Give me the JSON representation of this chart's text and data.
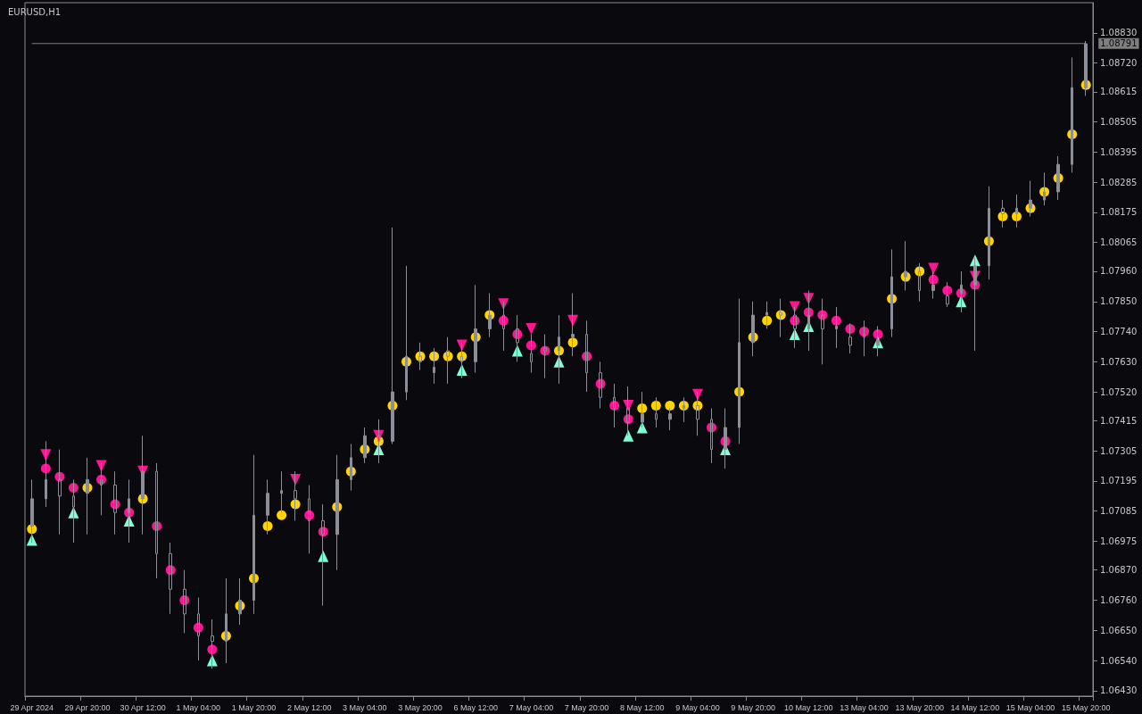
{
  "chart_data": {
    "type": "candlestick",
    "title": "EURUSD,H1",
    "categories": [
      "29 Apr 2024",
      null,
      null,
      null,
      "29 Apr 20:00",
      null,
      null,
      null,
      "30 Apr 12:00",
      null,
      null,
      null,
      "1 May 04:00",
      null,
      null,
      null,
      "1 May 20:00",
      null,
      null,
      null,
      "2 May 12:00",
      null,
      null,
      null,
      "3 May 04:00",
      null,
      null,
      null,
      "3 May 20:00",
      null,
      null,
      null,
      "6 May 12:00",
      null,
      null,
      null,
      "7 May 04:00",
      null,
      null,
      null,
      "7 May 20:00",
      null,
      null,
      null,
      "8 May 12:00",
      null,
      null,
      null,
      "9 May 04:00",
      null,
      null,
      null,
      "9 May 20:00",
      null,
      null,
      null,
      "10 May 12:00",
      null,
      null,
      null,
      "13 May 04:00",
      null,
      null,
      null,
      "13 May 20:00",
      null,
      null,
      null,
      "14 May 12:00",
      null,
      null,
      null,
      "15 May 04:00",
      null,
      null,
      null,
      "15 May 20:00"
    ],
    "ylim": [
      1.0641,
      1.0894
    ],
    "yticks": [
      {
        "value": 1.0643,
        "label": "1.06430"
      },
      {
        "value": 1.0654,
        "label": "1.06540"
      },
      {
        "value": 1.0665,
        "label": "1.06650"
      },
      {
        "value": 1.0676,
        "label": "1.06760"
      },
      {
        "value": 1.0687,
        "label": "1.06870"
      },
      {
        "value": 1.06975,
        "label": "1.06975"
      },
      {
        "value": 1.07085,
        "label": "1.07085"
      },
      {
        "value": 1.07195,
        "label": "1.07195"
      },
      {
        "value": 1.07305,
        "label": "1.07305"
      },
      {
        "value": 1.07415,
        "label": "1.07415"
      },
      {
        "value": 1.0752,
        "label": "1.07520"
      },
      {
        "value": 1.0763,
        "label": "1.07630"
      },
      {
        "value": 1.0774,
        "label": "1.07740"
      },
      {
        "value": 1.0785,
        "label": "1.07850"
      },
      {
        "value": 1.0796,
        "label": "1.07960"
      },
      {
        "value": 1.08065,
        "label": "1.08065"
      },
      {
        "value": 1.08175,
        "label": "1.08175"
      },
      {
        "value": 1.08285,
        "label": "1.08285"
      },
      {
        "value": 1.08395,
        "label": "1.08395"
      },
      {
        "value": 1.08505,
        "label": "1.08505"
      },
      {
        "value": 1.08615,
        "label": "1.08615"
      },
      {
        "value": 1.0872,
        "label": "1.08720"
      },
      {
        "value": 1.0883,
        "label": "1.08830"
      }
    ],
    "grid": false,
    "ref_lines": [
      {
        "axis": "y",
        "value": 1.08791,
        "label": "1.08791",
        "color": "#7f7f7f"
      }
    ],
    "series": [
      {
        "type": "scatter",
        "marker": "circle",
        "color": "#ffd400",
        "values": [
          1.0702,
          null,
          null,
          null,
          1.0717,
          null,
          null,
          null,
          1.0713,
          null,
          null,
          null,
          null,
          null,
          1.0663,
          1.0674,
          1.0684,
          1.0703,
          1.0707,
          1.0711,
          null,
          null,
          1.071,
          1.0723,
          1.0731,
          1.0734,
          1.0747,
          1.0763,
          1.0765,
          1.0765,
          1.0765,
          1.0765,
          1.0772,
          1.078,
          null,
          null,
          null,
          null,
          1.0767,
          1.077,
          null,
          null,
          null,
          null,
          1.0746,
          1.0747,
          1.0747,
          1.0747,
          1.0747,
          null,
          null,
          1.0752,
          1.0772,
          1.0778,
          1.078,
          null,
          null,
          null,
          null,
          null,
          null,
          null,
          1.0786,
          1.0794,
          1.0796,
          null,
          null,
          null,
          null,
          1.0807,
          1.0816,
          1.0816,
          1.0819,
          1.0825,
          1.083,
          1.0846,
          1.0864
        ]
      },
      {
        "type": "scatter",
        "marker": "circle",
        "color": "#ff1493",
        "values": [
          null,
          1.0724,
          1.0721,
          1.0717,
          null,
          1.072,
          1.0711,
          1.0708,
          null,
          1.0703,
          1.0687,
          1.0676,
          1.0666,
          1.0658,
          null,
          null,
          null,
          null,
          null,
          null,
          1.0707,
          1.0701,
          null,
          null,
          null,
          null,
          null,
          null,
          null,
          null,
          null,
          null,
          null,
          null,
          1.0778,
          1.0773,
          1.0769,
          1.0767,
          null,
          null,
          1.0765,
          1.0755,
          1.0747,
          1.0742,
          null,
          null,
          null,
          null,
          null,
          1.0739,
          1.0734,
          null,
          null,
          null,
          null,
          1.0778,
          1.0781,
          1.078,
          1.0778,
          1.0775,
          1.0774,
          1.0773,
          null,
          null,
          null,
          1.0793,
          1.0789,
          1.0788,
          1.0791,
          null,
          null,
          null,
          null,
          null,
          null,
          null,
          null
        ]
      },
      {
        "type": "scatter",
        "marker": "triangle",
        "color": "#7fffd4",
        "values": [
          1.0698,
          null,
          null,
          1.0708,
          null,
          null,
          null,
          1.0705,
          null,
          null,
          null,
          null,
          null,
          1.0654,
          null,
          null,
          null,
          null,
          null,
          null,
          null,
          1.0692,
          null,
          null,
          null,
          1.0731,
          null,
          null,
          null,
          null,
          null,
          1.076,
          null,
          null,
          null,
          1.0767,
          null,
          null,
          1.0763,
          null,
          null,
          null,
          null,
          1.0736,
          1.0739,
          null,
          null,
          null,
          null,
          null,
          1.0731,
          null,
          null,
          null,
          null,
          1.0773,
          1.0776,
          null,
          null,
          null,
          null,
          1.077,
          null,
          null,
          null,
          null,
          null,
          1.0785,
          1.08,
          null,
          null,
          null,
          null,
          null,
          null,
          null,
          null
        ]
      },
      {
        "type": "scatter",
        "marker": "triangle",
        "color": "#ff1493",
        "values": [
          null,
          1.0729,
          null,
          null,
          null,
          1.0725,
          null,
          null,
          1.0723,
          null,
          null,
          null,
          null,
          null,
          null,
          null,
          null,
          null,
          null,
          1.072,
          null,
          null,
          null,
          null,
          null,
          1.0736,
          null,
          null,
          null,
          null,
          null,
          1.0769,
          null,
          null,
          1.0784,
          null,
          1.0775,
          null,
          null,
          1.0778,
          null,
          null,
          null,
          1.0747,
          null,
          null,
          null,
          null,
          1.0751,
          null,
          null,
          null,
          null,
          null,
          null,
          1.0783,
          1.0786,
          null,
          null,
          null,
          null,
          null,
          null,
          null,
          null,
          1.0797,
          null,
          null,
          1.0794,
          null,
          null,
          null,
          null,
          null,
          null,
          null,
          null
        ]
      },
      {
        "color": "#8c8f98",
        "ohlc": [
          [
            1.0703,
            1.072,
            1.0697,
            1.0713
          ],
          [
            1.0713,
            1.0734,
            1.071,
            1.072
          ],
          [
            1.072,
            1.0731,
            1.07,
            1.0714
          ],
          [
            1.0714,
            1.072,
            1.0697,
            1.071
          ],
          [
            1.0715,
            1.0728,
            1.07,
            1.072
          ],
          [
            1.072,
            1.0726,
            1.0707,
            1.0718
          ],
          [
            1.0718,
            1.0723,
            1.07,
            1.0708
          ],
          [
            1.0708,
            1.072,
            1.0697,
            1.0713
          ],
          [
            1.0713,
            1.0736,
            1.07,
            1.0723
          ],
          [
            1.0723,
            1.0726,
            1.0684,
            1.0693
          ],
          [
            1.0693,
            1.0697,
            1.0671,
            1.068
          ],
          [
            1.068,
            1.0687,
            1.0664,
            1.0671
          ],
          [
            1.0671,
            1.0677,
            1.0654,
            1.0663
          ],
          [
            1.0663,
            1.0669,
            1.0651,
            1.0661
          ],
          [
            1.0661,
            1.0684,
            1.0653,
            1.0671
          ],
          [
            1.0671,
            1.0684,
            1.0667,
            1.0676
          ],
          [
            1.0676,
            1.0729,
            1.0671,
            1.0707
          ],
          [
            1.0707,
            1.072,
            1.07,
            1.0715
          ],
          [
            1.0715,
            1.0723,
            1.0708,
            1.0716
          ],
          [
            1.0716,
            1.0723,
            1.0705,
            1.0713
          ],
          [
            1.0713,
            1.0718,
            1.0693,
            1.0705
          ],
          [
            1.0705,
            1.0711,
            1.0674,
            1.07
          ],
          [
            1.07,
            1.0729,
            1.0687,
            1.072
          ],
          [
            1.072,
            1.0733,
            1.0716,
            1.0728
          ],
          [
            1.0728,
            1.0739,
            1.0726,
            1.0736
          ],
          [
            1.0736,
            1.0742,
            1.0726,
            1.0734
          ],
          [
            1.0734,
            1.0812,
            1.0733,
            1.0752
          ],
          [
            1.0752,
            1.0798,
            1.0749,
            1.0765
          ],
          [
            1.0765,
            1.077,
            1.076,
            1.0763
          ],
          [
            1.0759,
            1.0768,
            1.0755,
            1.0761
          ],
          [
            1.0767,
            1.0772,
            1.0755,
            1.0765
          ],
          [
            1.0765,
            1.077,
            1.0757,
            1.0763
          ],
          [
            1.0763,
            1.0791,
            1.0759,
            1.0775
          ],
          [
            1.0775,
            1.0788,
            1.0772,
            1.078
          ],
          [
            1.078,
            1.0785,
            1.0767,
            1.0775
          ],
          [
            1.0775,
            1.078,
            1.0763,
            1.077
          ],
          [
            1.0766,
            1.0773,
            1.0759,
            1.0763
          ],
          [
            1.0768,
            1.0773,
            1.0757,
            1.0767
          ],
          [
            1.0767,
            1.078,
            1.0755,
            1.0772
          ],
          [
            1.0772,
            1.0788,
            1.0765,
            1.0773
          ],
          [
            1.0773,
            1.0778,
            1.0752,
            1.0759
          ],
          [
            1.0759,
            1.0763,
            1.0746,
            1.075
          ],
          [
            1.075,
            1.0755,
            1.0739,
            1.0746
          ],
          [
            1.0746,
            1.0754,
            1.0736,
            1.0741
          ],
          [
            1.0741,
            1.0752,
            1.0739,
            1.0744
          ],
          [
            1.0744,
            1.075,
            1.0739,
            1.0742
          ],
          [
            1.0742,
            1.0746,
            1.0738,
            1.0744
          ],
          [
            1.0746,
            1.075,
            1.0741,
            1.0747
          ],
          [
            1.0747,
            1.0752,
            1.0736,
            1.0742
          ],
          [
            1.0742,
            1.0746,
            1.0726,
            1.0731
          ],
          [
            1.0731,
            1.0746,
            1.0724,
            1.0739
          ],
          [
            1.0739,
            1.0786,
            1.0733,
            1.077
          ],
          [
            1.077,
            1.0785,
            1.0765,
            1.078
          ],
          [
            1.078,
            1.0785,
            1.0775,
            1.0781
          ],
          [
            1.0781,
            1.0786,
            1.0772,
            1.078
          ],
          [
            1.078,
            1.0783,
            1.0768,
            1.0775
          ],
          [
            1.0775,
            1.0789,
            1.0767,
            1.078
          ],
          [
            1.078,
            1.0786,
            1.0762,
            1.0775
          ],
          [
            1.0775,
            1.0783,
            1.0768,
            1.0776
          ],
          [
            1.0772,
            1.0777,
            1.0766,
            1.0769
          ],
          [
            1.0773,
            1.0778,
            1.0765,
            1.0772
          ],
          [
            1.0769,
            1.0776,
            1.0765,
            1.0771
          ],
          [
            1.0775,
            1.0804,
            1.0772,
            1.0794
          ],
          [
            1.0794,
            1.0807,
            1.0789,
            1.0796
          ],
          [
            1.0796,
            1.0799,
            1.0785,
            1.0789
          ],
          [
            1.0789,
            1.0796,
            1.0786,
            1.0791
          ],
          [
            1.0787,
            1.0792,
            1.0783,
            1.0784
          ],
          [
            1.0788,
            1.0796,
            1.0781,
            1.0791
          ],
          [
            1.0791,
            1.0801,
            1.0767,
            1.0798
          ],
          [
            1.0798,
            1.0827,
            1.0793,
            1.0819
          ],
          [
            1.0819,
            1.0822,
            1.0812,
            1.0817
          ],
          [
            1.0817,
            1.0824,
            1.0812,
            1.0819
          ],
          [
            1.0819,
            1.0829,
            1.0816,
            1.0822
          ],
          [
            1.0822,
            1.0832,
            1.082,
            1.0825
          ],
          [
            1.0825,
            1.0838,
            1.0822,
            1.0835
          ],
          [
            1.0835,
            1.0874,
            1.0832,
            1.0863
          ],
          [
            1.0863,
            1.088,
            1.086,
            1.0879
          ]
        ]
      }
    ]
  }
}
